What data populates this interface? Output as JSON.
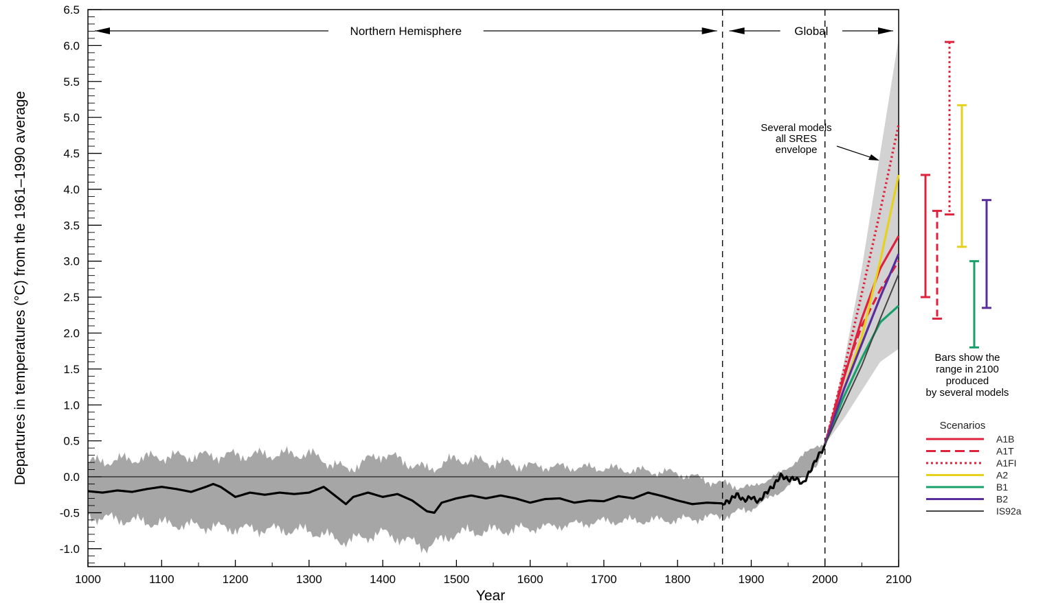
{
  "chart_data": {
    "type": "line",
    "title": "",
    "xlabel": "Year",
    "ylabel": "Departures in temperatures (°C) from the 1961–1990 average",
    "xlim": [
      1000,
      2100
    ],
    "ylim": [
      -1.25,
      6.5
    ],
    "x_ticks": [
      "1000",
      "1100",
      "1200",
      "1300",
      "1400",
      "1500",
      "1600",
      "1700",
      "1800",
      "1900",
      "2000",
      "2100"
    ],
    "y_ticks": [
      "-1.0",
      "-0.5",
      "0.0",
      "0.5",
      "1.0",
      "1.5",
      "2.0",
      "2.5",
      "3.0",
      "3.5",
      "4.0",
      "4.5",
      "5.0",
      "5.5",
      "6.0",
      "6.5"
    ],
    "grid": false,
    "regions": [
      {
        "label": "Northern Hemisphere",
        "from": 1000,
        "to": 1861
      },
      {
        "label": "Global",
        "from": 1861,
        "to": 2100
      }
    ],
    "dividers": [
      1861,
      2000
    ],
    "annotation": "Several models all SRES envelope",
    "bars_note": "Bars show the range in 2100 produced by several models",
    "legend_title": "Scenarios",
    "legend_position": "right",
    "historical": {
      "x": [
        1000,
        1020,
        1040,
        1060,
        1080,
        1100,
        1120,
        1140,
        1160,
        1170,
        1180,
        1200,
        1220,
        1240,
        1260,
        1280,
        1300,
        1320,
        1340,
        1350,
        1360,
        1380,
        1400,
        1420,
        1440,
        1460,
        1470,
        1480,
        1500,
        1520,
        1540,
        1560,
        1580,
        1600,
        1620,
        1640,
        1660,
        1680,
        1700,
        1720,
        1740,
        1760,
        1780,
        1800,
        1820,
        1840,
        1861,
        1870,
        1880,
        1890,
        1900,
        1910,
        1920,
        1930,
        1940,
        1950,
        1960,
        1970,
        1980,
        1990,
        2000
      ],
      "y": [
        -0.2,
        -0.22,
        -0.19,
        -0.21,
        -0.17,
        -0.14,
        -0.17,
        -0.21,
        -0.14,
        -0.1,
        -0.14,
        -0.28,
        -0.22,
        -0.25,
        -0.22,
        -0.24,
        -0.22,
        -0.14,
        -0.3,
        -0.38,
        -0.28,
        -0.22,
        -0.28,
        -0.24,
        -0.33,
        -0.48,
        -0.5,
        -0.36,
        -0.3,
        -0.26,
        -0.3,
        -0.26,
        -0.3,
        -0.36,
        -0.31,
        -0.3,
        -0.36,
        -0.33,
        -0.34,
        -0.27,
        -0.3,
        -0.22,
        -0.27,
        -0.33,
        -0.38,
        -0.36,
        -0.37,
        -0.34,
        -0.24,
        -0.33,
        -0.28,
        -0.35,
        -0.22,
        -0.13,
        0.02,
        -0.04,
        -0.02,
        -0.1,
        0.08,
        0.28,
        0.42
      ]
    },
    "uncertainty_band": {
      "x": [
        1000,
        1100,
        1200,
        1300,
        1350,
        1400,
        1460,
        1500,
        1600,
        1700,
        1800,
        1861,
        1900,
        1940,
        1990,
        2000
      ],
      "upper": [
        0.2,
        0.28,
        0.3,
        0.32,
        0.1,
        0.32,
        0.1,
        0.25,
        0.15,
        0.12,
        0.05,
        -0.1,
        -0.15,
        0.05,
        0.45,
        0.45
      ],
      "lower": [
        -0.55,
        -0.65,
        -0.72,
        -0.75,
        -0.9,
        -0.78,
        -0.98,
        -0.78,
        -0.72,
        -0.62,
        -0.6,
        -0.55,
        -0.45,
        -0.2,
        0.15,
        0.38
      ]
    },
    "envelope": {
      "x": [
        2000,
        2025,
        2050,
        2075,
        2100
      ],
      "upper": [
        0.45,
        1.55,
        2.9,
        4.5,
        6.1
      ],
      "lower": [
        0.45,
        0.8,
        1.2,
        1.6,
        1.78
      ]
    },
    "series": [
      {
        "name": "A1B",
        "color": "#e0213b",
        "dash": "solid",
        "x": [
          2000,
          2025,
          2050,
          2075,
          2100
        ],
        "y": [
          0.45,
          1.35,
          2.2,
          2.9,
          3.35
        ]
      },
      {
        "name": "A1T",
        "color": "#e0213b",
        "dash": "dashed",
        "x": [
          2000,
          2025,
          2050,
          2075,
          2100
        ],
        "y": [
          0.45,
          1.4,
          2.1,
          2.6,
          3.0
        ]
      },
      {
        "name": "A1FI",
        "color": "#e0213b",
        "dash": "dotted",
        "x": [
          2000,
          2025,
          2050,
          2075,
          2100
        ],
        "y": [
          0.45,
          1.45,
          2.55,
          3.7,
          4.9
        ]
      },
      {
        "name": "A2",
        "color": "#e6d21d",
        "dash": "solid",
        "x": [
          2000,
          2025,
          2050,
          2075,
          2100
        ],
        "y": [
          0.45,
          1.2,
          1.95,
          3.0,
          4.2
        ]
      },
      {
        "name": "B1",
        "color": "#17a06a",
        "dash": "solid",
        "x": [
          2000,
          2025,
          2050,
          2075,
          2100
        ],
        "y": [
          0.45,
          1.1,
          1.65,
          2.15,
          2.38
        ]
      },
      {
        "name": "B2",
        "color": "#5a2d9c",
        "dash": "solid",
        "x": [
          2000,
          2025,
          2050,
          2075,
          2100
        ],
        "y": [
          0.45,
          1.2,
          1.85,
          2.5,
          3.1
        ]
      },
      {
        "name": "IS92a",
        "color": "#444444",
        "dash": "solid",
        "x": [
          2000,
          2025,
          2050,
          2075,
          2100
        ],
        "y": [
          0.45,
          1.0,
          1.55,
          2.2,
          2.82
        ]
      }
    ],
    "range_bars": [
      {
        "name": "A1B",
        "low": 2.5,
        "high": 4.2
      },
      {
        "name": "A1T",
        "low": 2.2,
        "high": 3.7
      },
      {
        "name": "A1FI",
        "low": 3.65,
        "high": 6.05
      },
      {
        "name": "A2",
        "low": 3.2,
        "high": 5.17
      },
      {
        "name": "B1",
        "low": 1.8,
        "high": 3.0
      },
      {
        "name": "B2",
        "low": 2.35,
        "high": 3.85
      }
    ]
  }
}
